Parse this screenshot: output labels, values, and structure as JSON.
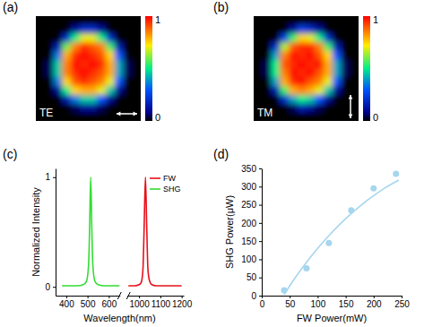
{
  "chart_data": [
    {
      "type": "heatmap",
      "title": "(a)",
      "annotation": "TE",
      "tick_labels": false,
      "cells": [
        [
          0,
          0,
          0,
          0,
          0,
          0,
          0,
          0,
          0,
          0,
          0,
          0
        ],
        [
          0,
          0,
          0,
          0,
          0.1,
          0.2,
          0.2,
          0.1,
          0,
          0,
          0,
          0
        ],
        [
          0,
          0,
          0,
          0.2,
          0.5,
          0.7,
          0.7,
          0.5,
          0.2,
          0,
          0,
          0
        ],
        [
          0,
          0,
          0.15,
          0.6,
          0.85,
          0.95,
          0.9,
          0.85,
          0.55,
          0.15,
          0,
          0
        ],
        [
          0,
          0,
          0.35,
          0.8,
          0.95,
          1,
          0.95,
          0.9,
          0.75,
          0.3,
          0,
          0
        ],
        [
          0,
          0.05,
          0.45,
          0.85,
          1,
          0.95,
          1,
          0.95,
          0.8,
          0.4,
          0.05,
          0
        ],
        [
          0,
          0.05,
          0.45,
          0.85,
          0.95,
          1,
          0.95,
          0.9,
          0.8,
          0.4,
          0.05,
          0
        ],
        [
          0,
          0,
          0.35,
          0.75,
          0.9,
          0.95,
          0.9,
          0.85,
          0.7,
          0.3,
          0,
          0
        ],
        [
          0,
          0,
          0.1,
          0.5,
          0.75,
          0.8,
          0.8,
          0.7,
          0.45,
          0.1,
          0,
          0
        ],
        [
          0,
          0,
          0,
          0.15,
          0.35,
          0.45,
          0.45,
          0.3,
          0.1,
          0,
          0,
          0
        ],
        [
          0,
          0,
          0,
          0,
          0.05,
          0.1,
          0.1,
          0.05,
          0,
          0,
          0,
          0
        ],
        [
          0,
          0,
          0,
          0,
          0,
          0,
          0,
          0,
          0,
          0,
          0,
          0
        ]
      ],
      "colorbar": {
        "range": [
          0,
          1
        ],
        "ticks": [
          0,
          1
        ]
      }
    },
    {
      "type": "heatmap",
      "title": "(b)",
      "annotation": "TM",
      "tick_labels": false,
      "cells": [
        [
          0,
          0,
          0,
          0,
          0,
          0,
          0,
          0,
          0,
          0,
          0,
          0
        ],
        [
          0,
          0,
          0,
          0,
          0.1,
          0.25,
          0.2,
          0.1,
          0,
          0,
          0,
          0
        ],
        [
          0,
          0,
          0,
          0.25,
          0.55,
          0.75,
          0.7,
          0.5,
          0.2,
          0,
          0,
          0
        ],
        [
          0,
          0,
          0.2,
          0.65,
          0.9,
          0.95,
          0.95,
          0.85,
          0.55,
          0.15,
          0,
          0
        ],
        [
          0,
          0,
          0.4,
          0.85,
          1,
          0.95,
          1,
          0.9,
          0.75,
          0.3,
          0,
          0
        ],
        [
          0,
          0.05,
          0.5,
          0.9,
          0.95,
          1,
          0.95,
          1,
          0.8,
          0.4,
          0.05,
          0
        ],
        [
          0,
          0.05,
          0.5,
          0.85,
          1,
          0.95,
          1,
          0.9,
          0.8,
          0.4,
          0.05,
          0
        ],
        [
          0,
          0,
          0.4,
          0.8,
          0.95,
          1,
          0.9,
          0.85,
          0.7,
          0.3,
          0,
          0
        ],
        [
          0,
          0,
          0.15,
          0.55,
          0.8,
          0.85,
          0.8,
          0.7,
          0.45,
          0.1,
          0,
          0
        ],
        [
          0,
          0,
          0,
          0.2,
          0.4,
          0.5,
          0.45,
          0.3,
          0.1,
          0,
          0,
          0
        ],
        [
          0,
          0,
          0,
          0,
          0.05,
          0.15,
          0.1,
          0.05,
          0,
          0,
          0,
          0
        ],
        [
          0,
          0,
          0,
          0,
          0,
          0,
          0,
          0,
          0,
          0,
          0,
          0
        ]
      ],
      "colorbar": {
        "range": [
          0,
          1
        ],
        "ticks": [
          0,
          1
        ]
      }
    },
    {
      "type": "line",
      "title": "(c)",
      "xlabel": "Wavelength(nm)",
      "ylabel": "Normalized Intensity",
      "xlim": [
        350,
        1210
      ],
      "xbreak": [
        650,
        950
      ],
      "xticks": [
        400,
        500,
        600,
        1000,
        1100,
        1200
      ],
      "ylim": [
        -0.08,
        1.08
      ],
      "yticks": [
        0,
        1
      ],
      "grid": false,
      "legend": "upper right",
      "series": [
        {
          "name": "FW",
          "color": "#e8101a",
          "x": [
            950,
            980,
            1000,
            1010,
            1018,
            1024,
            1030,
            1036,
            1042,
            1050,
            1060,
            1080,
            1120,
            1160,
            1200
          ],
          "values": [
            0.01,
            0.01,
            0.02,
            0.04,
            0.15,
            0.55,
            1.0,
            0.55,
            0.15,
            0.05,
            0.02,
            0.01,
            0.01,
            0.01,
            0.01
          ]
        },
        {
          "name": "SHG",
          "color": "#33dd33",
          "x": [
            380,
            400,
            450,
            480,
            495,
            505,
            510,
            515,
            520,
            525,
            535,
            550,
            580,
            620,
            650
          ],
          "values": [
            0.01,
            0.01,
            0.01,
            0.02,
            0.05,
            0.2,
            0.55,
            1.0,
            0.55,
            0.2,
            0.05,
            0.02,
            0.01,
            0.01,
            0.01
          ]
        }
      ]
    },
    {
      "type": "scatter",
      "title": "(d)",
      "xlabel": "FW Power(mW)",
      "ylabel": "SHG Power(μW)",
      "xlim": [
        0,
        250
      ],
      "xticks": [
        0,
        50,
        100,
        150,
        200,
        250
      ],
      "ylim": [
        0,
        350
      ],
      "yticks": [
        0,
        50,
        100,
        150,
        200,
        250,
        300,
        350
      ],
      "grid": false,
      "series": [
        {
          "type": "scatter",
          "marker": "circle",
          "color": "#a6d6ee",
          "x": [
            40,
            80,
            120,
            160,
            200,
            240
          ],
          "values": [
            15,
            75,
            145,
            235,
            295,
            335
          ]
        },
        {
          "type": "line",
          "line_style": "solid",
          "color": "#a6d6ee",
          "x": [
            40,
            60,
            80,
            100,
            120,
            140,
            160,
            180,
            200,
            220,
            245
          ],
          "values": [
            3,
            50,
            92,
            130,
            165,
            197,
            226,
            252,
            275,
            296,
            318
          ]
        }
      ]
    }
  ]
}
